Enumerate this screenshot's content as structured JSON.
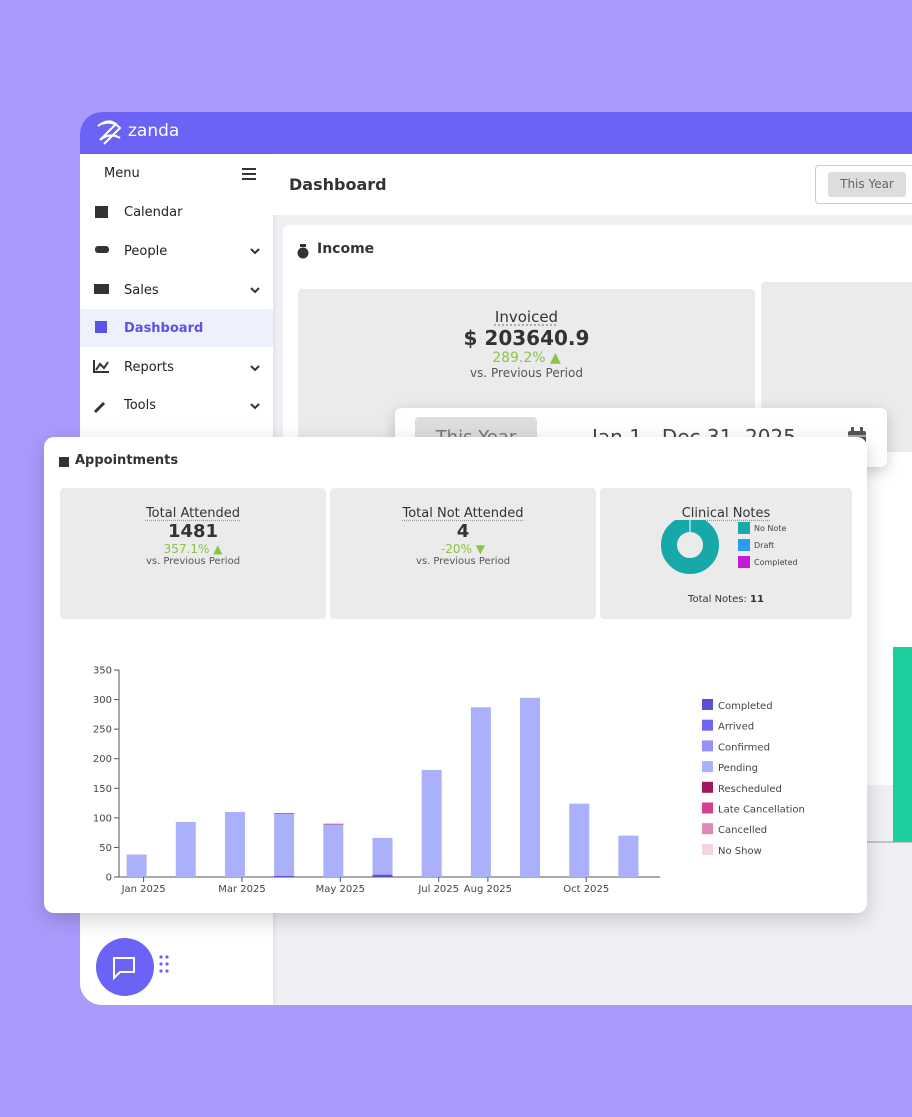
{
  "brand": "zanda",
  "sidebar": {
    "menu": "Menu",
    "items": [
      "Calendar",
      "People",
      "Sales",
      "Dashboard",
      "Reports",
      "Tools"
    ]
  },
  "header": {
    "title": "Dashboard",
    "period_button": "This Year"
  },
  "income": {
    "title": "Income",
    "invoiced": {
      "label": "Invoiced",
      "value": "$ 203640.9",
      "change": "289.2%",
      "note": "vs. Previous Period"
    }
  },
  "date_picker": {
    "preset": "This Year",
    "range": "Jan 1 - Dec 31, 2025"
  },
  "appointments": {
    "title": "Appointments",
    "cards": [
      {
        "label": "Total Attended",
        "value": 1481,
        "change": "357.1%",
        "note": "vs. Previous Period"
      },
      {
        "label": "Total Not Attended",
        "value": 4,
        "change": "-20%",
        "note": "vs. Previous Period"
      }
    ],
    "notes_total_label": "Total Notes:",
    "notes_total": 11
  },
  "chart_data": [
    {
      "type": "bar",
      "stacked": true,
      "categories": [
        "Jan 2025",
        null,
        "Mar 2025",
        null,
        "May 2025",
        null,
        "Jul 2025",
        "Aug 2025",
        null,
        "Oct 2025",
        null
      ],
      "series": [
        {
          "name": "Completed",
          "color": "#5b4fd9",
          "values": [
            0,
            0,
            0,
            2,
            0,
            4,
            0,
            0,
            0,
            0,
            0
          ]
        },
        {
          "name": "Arrived",
          "color": "#6f66f0",
          "values": [
            0,
            0,
            0,
            0,
            0,
            0,
            0,
            0,
            0,
            0,
            0
          ]
        },
        {
          "name": "Confirmed",
          "color": "#9891f5",
          "values": [
            0,
            0,
            0,
            0,
            0,
            0,
            0,
            0,
            0,
            0,
            0
          ]
        },
        {
          "name": "Pending",
          "color": "#aab0fa",
          "values": [
            38,
            93,
            110,
            105,
            89,
            62,
            181,
            287,
            303,
            124,
            70
          ]
        },
        {
          "name": "Rescheduled",
          "color": "#a3155e",
          "values": [
            0,
            0,
            0,
            1,
            1,
            0,
            0,
            0,
            0,
            0,
            0
          ]
        },
        {
          "name": "Late Cancellation",
          "color": "#d4418c",
          "values": [
            0,
            0,
            0,
            0,
            0,
            0,
            0,
            0,
            0,
            0,
            0
          ]
        },
        {
          "name": "Cancelled",
          "color": "#e087b8",
          "values": [
            0,
            0,
            0,
            0,
            0,
            0,
            0,
            0,
            0,
            0,
            0
          ]
        },
        {
          "name": "No Show",
          "color": "#f5d3e4",
          "values": [
            0,
            0,
            0,
            0,
            0,
            0,
            0,
            0,
            0,
            0,
            0
          ]
        }
      ],
      "ylim": [
        0,
        350
      ],
      "yticks": [
        0,
        50,
        100,
        150,
        200,
        250,
        300,
        350
      ],
      "legend": "right"
    },
    {
      "type": "pie",
      "title": "Clinical Notes",
      "donut": true,
      "categories": [
        "No Note",
        "Draft",
        "Completed"
      ],
      "values": [
        11,
        0,
        0
      ],
      "colors": [
        "#17a8a8",
        "#2b9cf0",
        "#c21bd6"
      ]
    }
  ]
}
